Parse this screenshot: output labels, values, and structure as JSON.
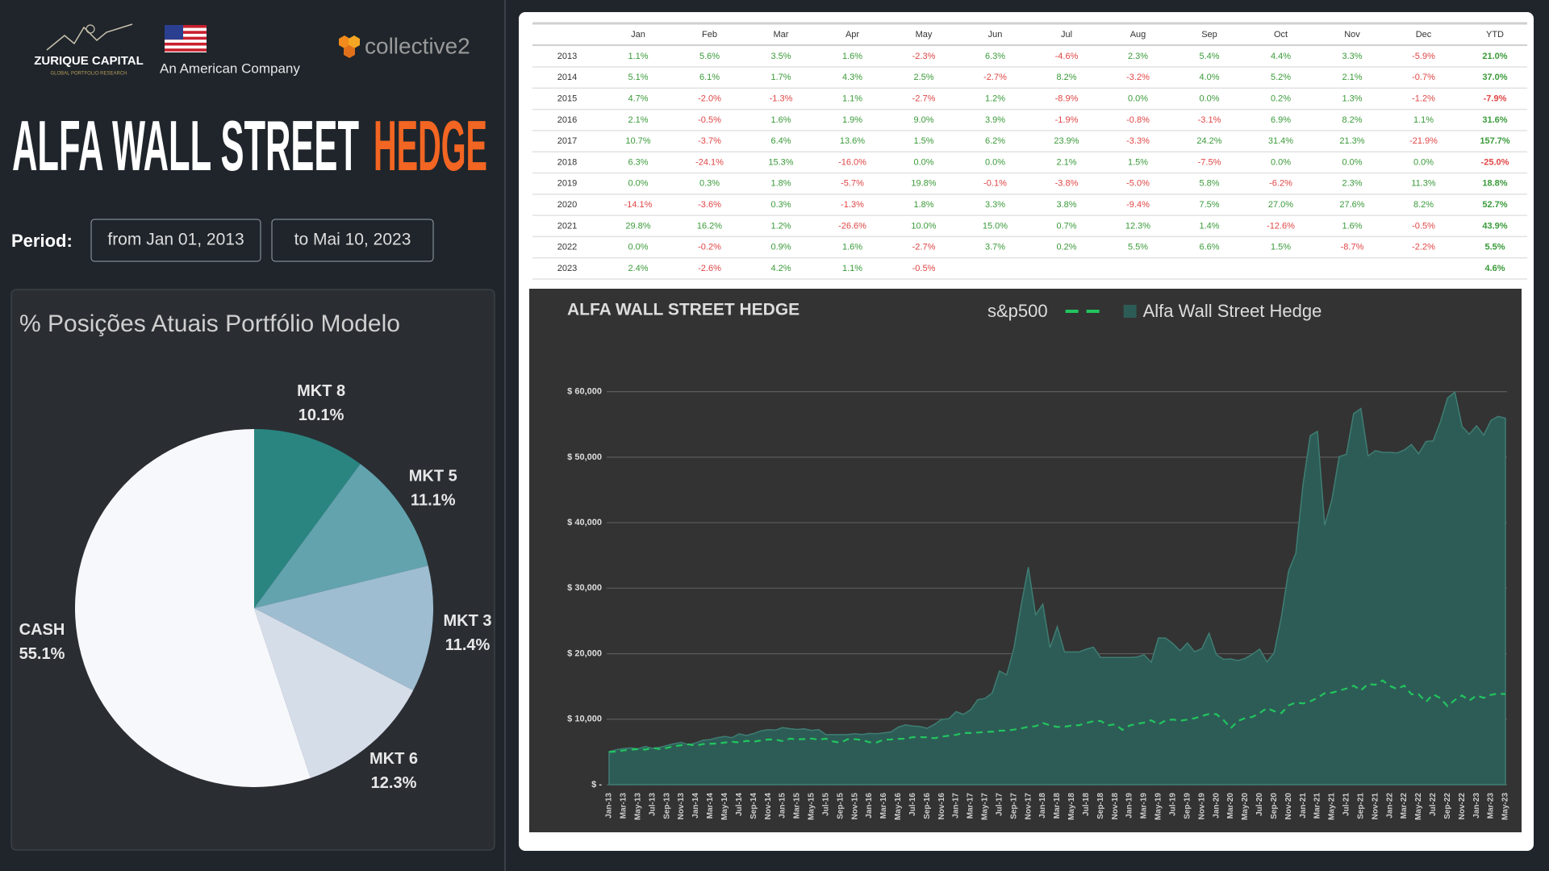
{
  "header": {
    "brand": "ZURIQUE CAPITAL",
    "brand_sub": "GLOBAL PORTFOLIO RESEARCH",
    "tagline": "An American Company",
    "partner": "collective2",
    "title_main": "ALFA WALL STREET",
    "title_accent": "HEDGE",
    "period_label": "Period:",
    "from": "from Jan 01, 2013",
    "to": "to Mai 10, 2023"
  },
  "table": {
    "positive_color": "#3a9a3a",
    "negative_color": "#e04545",
    "columns": [
      "Jan",
      "Feb",
      "Mar",
      "Apr",
      "May",
      "Jun",
      "Jul",
      "Aug",
      "Sep",
      "Oct",
      "Nov",
      "Dec",
      "YTD"
    ],
    "rows": [
      {
        "year": "2013",
        "months": [
          "1.1%",
          "5.6%",
          "3.5%",
          "1.6%",
          "-2.3%",
          "6.3%",
          "-4.6%",
          "2.3%",
          "5.4%",
          "4.4%",
          "3.3%",
          "-5.9%"
        ],
        "ytd": "21.0%"
      },
      {
        "year": "2014",
        "months": [
          "5.1%",
          "6.1%",
          "1.7%",
          "4.3%",
          "2.5%",
          "-2.7%",
          "8.2%",
          "-3.2%",
          "4.0%",
          "5.2%",
          "2.1%",
          "-0.7%"
        ],
        "ytd": "37.0%"
      },
      {
        "year": "2015",
        "months": [
          "4.7%",
          "-2.0%",
          "-1.3%",
          "1.1%",
          "-2.7%",
          "1.2%",
          "-8.9%",
          "0.0%",
          "0.0%",
          "0.2%",
          "1.3%",
          "-1.2%"
        ],
        "ytd": "-7.9%"
      },
      {
        "year": "2016",
        "months": [
          "2.1%",
          "-0.5%",
          "1.6%",
          "1.9%",
          "9.0%",
          "3.9%",
          "-1.9%",
          "-0.8%",
          "-3.1%",
          "6.9%",
          "8.2%",
          "1.1%"
        ],
        "ytd": "31.6%"
      },
      {
        "year": "2017",
        "months": [
          "10.7%",
          "-3.7%",
          "6.4%",
          "13.6%",
          "1.5%",
          "6.2%",
          "23.9%",
          "-3.3%",
          "24.2%",
          "31.4%",
          "21.3%",
          "-21.9%"
        ],
        "ytd": "157.7%"
      },
      {
        "year": "2018",
        "months": [
          "6.3%",
          "-24.1%",
          "15.3%",
          "-16.0%",
          "0.0%",
          "0.0%",
          "2.1%",
          "1.5%",
          "-7.5%",
          "0.0%",
          "0.0%",
          "0.0%"
        ],
        "ytd": "-25.0%"
      },
      {
        "year": "2019",
        "months": [
          "0.0%",
          "0.3%",
          "1.8%",
          "-5.7%",
          "19.8%",
          "-0.1%",
          "-3.8%",
          "-5.0%",
          "5.8%",
          "-6.2%",
          "2.3%",
          "11.3%"
        ],
        "ytd": "18.8%"
      },
      {
        "year": "2020",
        "months": [
          "-14.1%",
          "-3.6%",
          "0.3%",
          "-1.3%",
          "1.8%",
          "3.3%",
          "3.8%",
          "-9.4%",
          "7.5%",
          "27.0%",
          "27.6%",
          "8.2%"
        ],
        "ytd": "52.7%"
      },
      {
        "year": "2021",
        "months": [
          "29.8%",
          "16.2%",
          "1.2%",
          "-26.6%",
          "10.0%",
          "15.0%",
          "0.7%",
          "12.3%",
          "1.4%",
          "-12.6%",
          "1.6%",
          "-0.5%"
        ],
        "ytd": "43.9%"
      },
      {
        "year": "2022",
        "months": [
          "0.0%",
          "-0.2%",
          "0.9%",
          "1.6%",
          "-2.7%",
          "3.7%",
          "0.2%",
          "5.5%",
          "6.6%",
          "1.5%",
          "-8.7%",
          "-2.2%"
        ],
        "ytd": "5.5%"
      },
      {
        "year": "2023",
        "months": [
          "2.4%",
          "-2.6%",
          "4.2%",
          "1.1%",
          "-0.5%"
        ],
        "ytd": "4.6%"
      }
    ]
  },
  "chart_data": [
    {
      "type": "pie",
      "title": "% Posições Atuais Portfólio Modelo",
      "categories": [
        "MKT 8",
        "MKT 5",
        "MKT 3",
        "MKT 6",
        "CASH"
      ],
      "values": [
        10.1,
        11.1,
        11.4,
        12.3,
        55.1
      ],
      "value_labels": [
        "10.1%",
        "11.1%",
        "11.4%",
        "12.3%",
        "55.1%"
      ],
      "colors": [
        "#2a8580",
        "#62a3ae",
        "#9ebdd1",
        "#d5dde9",
        "#f7f8fc"
      ]
    },
    {
      "type": "area",
      "title": "ALFA WALL STREET HEDGE",
      "grid": true,
      "ylim": [
        0,
        65000
      ],
      "yticks": [
        {
          "value": 0,
          "label": "$ -"
        },
        {
          "value": 10000,
          "label": "$ 10,000"
        },
        {
          "value": 20000,
          "label": "$ 20,000"
        },
        {
          "value": 30000,
          "label": "$ 30,000"
        },
        {
          "value": 40000,
          "label": "$ 40,000"
        },
        {
          "value": 50000,
          "label": "$ 50,000"
        },
        {
          "value": 60000,
          "label": "$ 60,000"
        }
      ],
      "categories": [
        "Jan-13",
        null,
        "Mar-13",
        null,
        "May-13",
        null,
        "Jul-13",
        null,
        "Sep-13",
        null,
        "Nov-13",
        null,
        "Jan-14",
        null,
        "Mar-14",
        null,
        "May-14",
        null,
        "Jul-14",
        null,
        "Sep-14",
        null,
        "Nov-14",
        null,
        "Jan-15",
        null,
        "Mar-15",
        null,
        "May-15",
        null,
        "Jul-15",
        null,
        "Sep-15",
        null,
        "Nov-15",
        null,
        "Jan-16",
        null,
        "Mar-16",
        null,
        "May-16",
        null,
        "Jul-16",
        null,
        "Sep-16",
        null,
        "Nov-16",
        null,
        "Jan-17",
        null,
        "Mar-17",
        null,
        "May-17",
        null,
        "Jul-17",
        null,
        "Sep-17",
        null,
        "Nov-17",
        null,
        "Jan-18",
        null,
        "Mar-18",
        null,
        "May-18",
        null,
        "Jul-18",
        null,
        "Sep-18",
        null,
        "Nov-18",
        null,
        "Jan-19",
        null,
        "Mar-19",
        null,
        "May-19",
        null,
        "Jul-19",
        null,
        "Sep-19",
        null,
        "Nov-19",
        null,
        "Jan-20",
        null,
        "Mar-20",
        null,
        "May-20",
        null,
        "Jul-20",
        null,
        "Sep-20",
        null,
        "Nov-20",
        null,
        "Jan-21",
        null,
        "Mar-21",
        null,
        "May-21",
        null,
        "Jul-21",
        null,
        "Sep-21",
        null,
        "Nov-21",
        null,
        "Jan-22",
        null,
        "Mar-22",
        null,
        "May-22",
        null,
        "Jul-22",
        null,
        "Sep-22",
        null,
        "Nov-22",
        null,
        "Jan-23",
        null,
        "Mar-23",
        null,
        "May-23"
      ],
      "series": [
        {
          "name": "s&p500",
          "color": "#22c55e",
          "style": "dashed",
          "values": [
            5000,
            5060,
            5240,
            5340,
            5450,
            5360,
            5630,
            5450,
            5620,
            5870,
            6030,
            6170,
            5960,
            6210,
            6250,
            6290,
            6430,
            6550,
            6450,
            6690,
            6590,
            6740,
            6910,
            6880,
            6660,
            7030,
            6910,
            6970,
            7040,
            6890,
            7030,
            6590,
            6410,
            6940,
            6950,
            6830,
            6480,
            6450,
            6880,
            6900,
            7000,
            7010,
            7260,
            7250,
            7240,
            7100,
            7340,
            7480,
            7610,
            7900,
            7890,
            7960,
            8060,
            8090,
            8250,
            8260,
            8410,
            8600,
            8840,
            8930,
            9430,
            9060,
            8820,
            8840,
            9030,
            9080,
            9410,
            9690,
            9730,
            9060,
            9220,
            8370,
            9030,
            9300,
            9470,
            9840,
            9190,
            9830,
            9950,
            9770,
            9940,
            10150,
            10490,
            10790,
            10770,
            9870,
            8630,
            9730,
            10170,
            10350,
            10930,
            11690,
            11230,
            10920,
            12100,
            12550,
            12400,
            12730,
            13270,
            13960,
            14040,
            14360,
            14680,
            15110,
            14390,
            15380,
            15250,
            15920,
            15080,
            14610,
            15130,
            13800,
            13800,
            12640,
            13790,
            13210,
            11980,
            12930,
            13630,
            12830,
            13620,
            13260,
            13720,
            13920,
            13820
          ]
        },
        {
          "name": "Alfa Wall Street Hedge",
          "color": "#2d5c56",
          "style": "area",
          "values": [
            5055,
            5340,
            5525,
            5615,
            5485,
            5830,
            5560,
            5690,
            5995,
            6260,
            6465,
            6085,
            6395,
            6785,
            6900,
            7195,
            7375,
            7175,
            7765,
            7515,
            7815,
            8220,
            8395,
            8335,
            8725,
            8550,
            8440,
            8530,
            8300,
            8400,
            7650,
            7650,
            7650,
            7665,
            7765,
            7670,
            7830,
            7790,
            7915,
            8065,
            8790,
            9135,
            8960,
            8890,
            8615,
            9210,
            9965,
            10075,
            11155,
            10740,
            11430,
            12985,
            13180,
            14000,
            17345,
            16770,
            20830,
            27370,
            33200,
            25930,
            27565,
            20920,
            24120,
            20260,
            20260,
            20260,
            20685,
            20995,
            19420,
            19420,
            19420,
            19420,
            19420,
            19480,
            19830,
            18700,
            22400,
            22380,
            21530,
            20450,
            21640,
            20300,
            20770,
            23120,
            19860,
            19145,
            19200,
            18950,
            19290,
            19930,
            20690,
            18745,
            20150,
            25590,
            32650,
            35330,
            45860,
            53290,
            53930,
            39590,
            43550,
            50080,
            50430,
            56630,
            57420,
            50190,
            50990,
            50740,
            50740,
            50640,
            51100,
            51920,
            50520,
            52390,
            52490,
            55380,
            59030,
            59920,
            54710,
            53510,
            54790,
            53370,
            55610,
            56220,
            55940
          ]
        }
      ]
    }
  ]
}
